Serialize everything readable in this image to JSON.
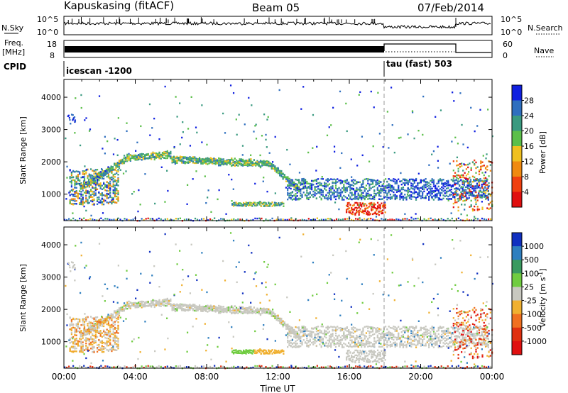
{
  "header": {
    "station": "Kapuskasing (fitACF)",
    "beam": "Beam 05",
    "date": "07/Feb/2014"
  },
  "top_panels": {
    "nsky_label": "N.Sky",
    "nsky_ticks": [
      "10^5",
      "10^0"
    ],
    "nsearch_label": "N.Search",
    "nsearch_ticks": [
      "10^5",
      "10^0"
    ],
    "freq_label_1": "Freq.",
    "freq_label_2": "[MHz]",
    "freq_ticks": [
      "18",
      "8"
    ],
    "nave_label": "Nave",
    "nave_ticks": [
      "60",
      "0"
    ],
    "cpid_label": "CPID",
    "cpid_segments": [
      {
        "name": "icescan -1200",
        "start": "00:00"
      },
      {
        "name": "tau (fast) 503",
        "start": "18:00"
      }
    ]
  },
  "chart_data": [
    {
      "type": "heatmap",
      "name": "power",
      "ylabel": "Slant Range [km]",
      "yticks": [
        "1000",
        "2000",
        "3000",
        "4000"
      ],
      "ylim": [
        180,
        4550
      ],
      "xlim": [
        "00:00",
        "24:00"
      ],
      "colorbar_label": "Power [dB]",
      "colorbar_ticks": [
        "4",
        "8",
        "12",
        "16",
        "20",
        "24",
        "28"
      ],
      "colorbar_colors": [
        "#1020e0",
        "#2f6fbf",
        "#3a9a80",
        "#5cbf4a",
        "#f0c020",
        "#f08a10",
        "#f04010",
        "#e01010"
      ]
    },
    {
      "type": "heatmap",
      "name": "velocity",
      "ylabel": "Slant Range [km]",
      "yticks": [
        "1000",
        "2000",
        "3000",
        "4000"
      ],
      "ylim": [
        180,
        4550
      ],
      "xlim": [
        "00:00",
        "24:00"
      ],
      "xlabel": "Time UT",
      "xticks": [
        "00:00",
        "04:00",
        "08:00",
        "12:00",
        "16:00",
        "20:00",
        "00:00"
      ],
      "colorbar_label": "Velocity [m s",
      "colorbar_label_sup": "-1",
      "colorbar_label_end": "]",
      "colorbar_ticks": [
        "1000",
        "500",
        "100",
        "25",
        "-25",
        "-100",
        "-500",
        "-1000"
      ],
      "colorbar_colors": [
        "#1030c0",
        "#2f7fbf",
        "#3a9a60",
        "#70cc40",
        "#c8c8c0",
        "#f0b030",
        "#f07020",
        "#e03010",
        "#e01010"
      ]
    }
  ]
}
